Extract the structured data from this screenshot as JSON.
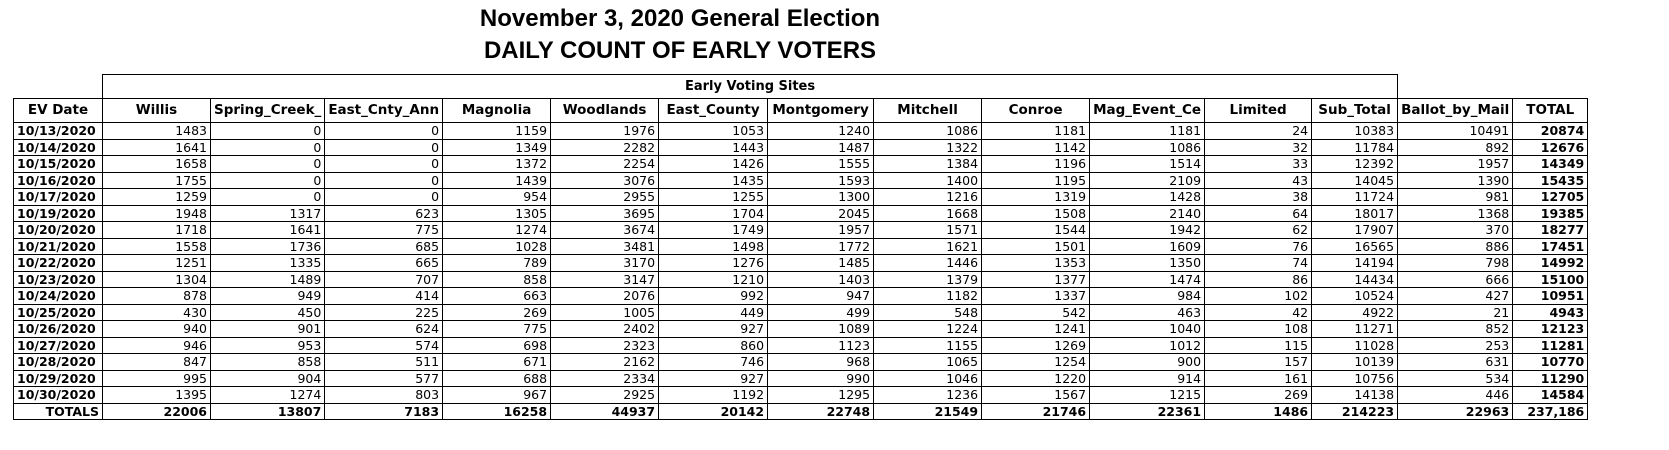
{
  "title_line1": "November 3, 2020 General Election",
  "title_line2": "DAILY COUNT OF EARLY VOTERS",
  "group_header": "Early Voting Sites",
  "columns": [
    "EV Date",
    "Willis",
    "Spring_Creek_",
    "East_Cnty_Ann",
    "Magnolia",
    "Woodlands",
    "East_County",
    "Montgomery",
    "Mitchell",
    "Conroe",
    "Mag_Event_Ce",
    "Limited",
    "Sub_Total",
    "Ballot_by_Mail",
    "TOTAL"
  ],
  "rows": [
    [
      "10/13/2020",
      "1483",
      "0",
      "0",
      "1159",
      "1976",
      "1053",
      "1240",
      "1086",
      "1181",
      "1181",
      "24",
      "10383",
      "10491",
      "20874"
    ],
    [
      "10/14/2020",
      "1641",
      "0",
      "0",
      "1349",
      "2282",
      "1443",
      "1487",
      "1322",
      "1142",
      "1086",
      "32",
      "11784",
      "892",
      "12676"
    ],
    [
      "10/15/2020",
      "1658",
      "0",
      "0",
      "1372",
      "2254",
      "1426",
      "1555",
      "1384",
      "1196",
      "1514",
      "33",
      "12392",
      "1957",
      "14349"
    ],
    [
      "10/16/2020",
      "1755",
      "0",
      "0",
      "1439",
      "3076",
      "1435",
      "1593",
      "1400",
      "1195",
      "2109",
      "43",
      "14045",
      "1390",
      "15435"
    ],
    [
      "10/17/2020",
      "1259",
      "0",
      "0",
      "954",
      "2955",
      "1255",
      "1300",
      "1216",
      "1319",
      "1428",
      "38",
      "11724",
      "981",
      "12705"
    ],
    [
      "10/19/2020",
      "1948",
      "1317",
      "623",
      "1305",
      "3695",
      "1704",
      "2045",
      "1668",
      "1508",
      "2140",
      "64",
      "18017",
      "1368",
      "19385"
    ],
    [
      "10/20/2020",
      "1718",
      "1641",
      "775",
      "1274",
      "3674",
      "1749",
      "1957",
      "1571",
      "1544",
      "1942",
      "62",
      "17907",
      "370",
      "18277"
    ],
    [
      "10/21/2020",
      "1558",
      "1736",
      "685",
      "1028",
      "3481",
      "1498",
      "1772",
      "1621",
      "1501",
      "1609",
      "76",
      "16565",
      "886",
      "17451"
    ],
    [
      "10/22/2020",
      "1251",
      "1335",
      "665",
      "789",
      "3170",
      "1276",
      "1485",
      "1446",
      "1353",
      "1350",
      "74",
      "14194",
      "798",
      "14992"
    ],
    [
      "10/23/2020",
      "1304",
      "1489",
      "707",
      "858",
      "3147",
      "1210",
      "1403",
      "1379",
      "1377",
      "1474",
      "86",
      "14434",
      "666",
      "15100"
    ],
    [
      "10/24/2020",
      "878",
      "949",
      "414",
      "663",
      "2076",
      "992",
      "947",
      "1182",
      "1337",
      "984",
      "102",
      "10524",
      "427",
      "10951"
    ],
    [
      "10/25/2020",
      "430",
      "450",
      "225",
      "269",
      "1005",
      "449",
      "499",
      "548",
      "542",
      "463",
      "42",
      "4922",
      "21",
      "4943"
    ],
    [
      "10/26/2020",
      "940",
      "901",
      "624",
      "775",
      "2402",
      "927",
      "1089",
      "1224",
      "1241",
      "1040",
      "108",
      "11271",
      "852",
      "12123"
    ],
    [
      "10/27/2020",
      "946",
      "953",
      "574",
      "698",
      "2323",
      "860",
      "1123",
      "1155",
      "1269",
      "1012",
      "115",
      "11028",
      "253",
      "11281"
    ],
    [
      "10/28/2020",
      "847",
      "858",
      "511",
      "671",
      "2162",
      "746",
      "968",
      "1065",
      "1254",
      "900",
      "157",
      "10139",
      "631",
      "10770"
    ],
    [
      "10/29/2020",
      "995",
      "904",
      "577",
      "688",
      "2334",
      "927",
      "990",
      "1046",
      "1220",
      "914",
      "161",
      "10756",
      "534",
      "11290"
    ],
    [
      "10/30/2020",
      "1395",
      "1274",
      "803",
      "967",
      "2925",
      "1192",
      "1295",
      "1236",
      "1567",
      "1215",
      "269",
      "14138",
      "446",
      "14584"
    ]
  ],
  "totals": [
    "TOTALS",
    "22006",
    "13807",
    "7183",
    "16258",
    "44937",
    "20142",
    "22748",
    "21549",
    "21746",
    "22361",
    "1486",
    "214223",
    "22963",
    "237,186"
  ]
}
